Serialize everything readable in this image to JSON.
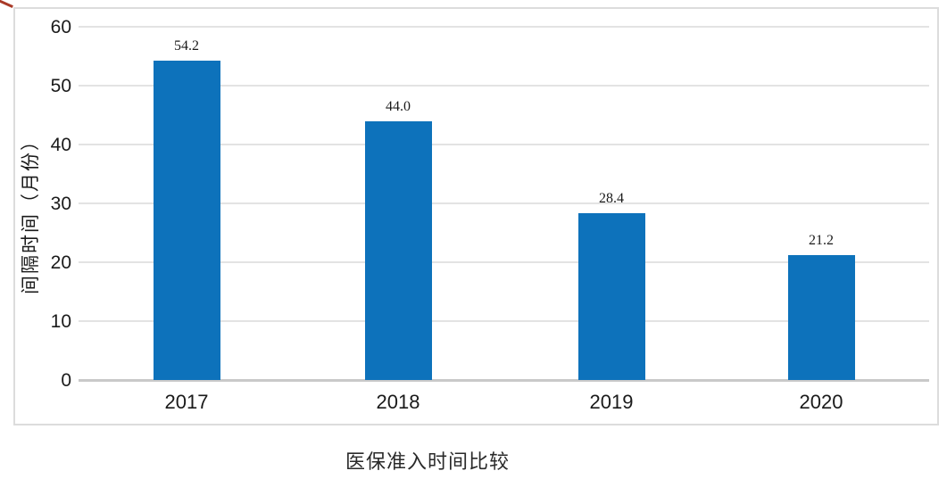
{
  "chart_data": {
    "type": "bar",
    "categories": [
      "2017",
      "2018",
      "2019",
      "2020"
    ],
    "values": [
      54.2,
      44.0,
      28.4,
      21.2
    ],
    "value_labels": [
      "54.2",
      "44.0",
      "28.4",
      "21.2"
    ],
    "title": "医保准入时间比较",
    "xlabel": "",
    "ylabel": "间隔时间（月份）",
    "ylim": [
      0,
      60
    ],
    "yticks": [
      0,
      10,
      20,
      30,
      40,
      50,
      60
    ],
    "grid": true,
    "legend": "none",
    "bar_color": "#0d72bb",
    "gridline_color": "#e3e3e3",
    "axis_line_color": "#c9c9c9",
    "frame_color": "#dcdcdc",
    "text_color": "#1a1a1a"
  }
}
